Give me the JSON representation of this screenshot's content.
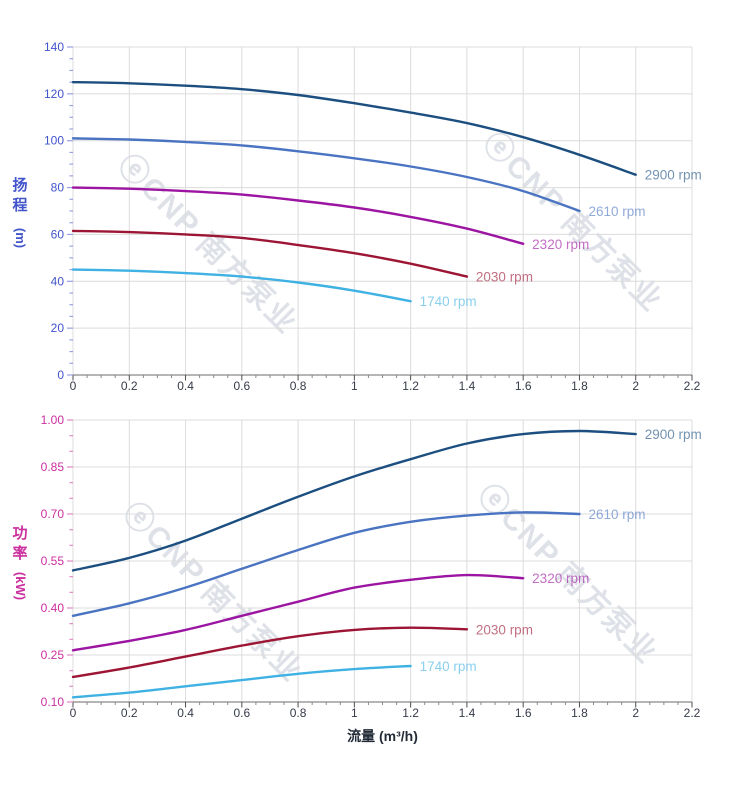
{
  "watermark": {
    "text": "ⓔCNP 南方泵业",
    "color": "#8d97ad"
  },
  "axis_titles": {
    "head_char_0": "扬",
    "head_char_1": "程",
    "head_unit": "(m)",
    "power_char_0": "功",
    "power_char_1": "率",
    "power_unit": "(kW)",
    "x_title": "流量 (m³/h)"
  },
  "chart_data": [
    {
      "type": "line",
      "title": "",
      "xlabel": "",
      "ylabel": "扬程 (m)",
      "legend_position": "end-of-line",
      "grid": true,
      "grid_color": "#dcdcdc",
      "axis_color": "#4254cc",
      "tick_color": "#97a0e0",
      "x_text_color": "#353b48",
      "xlim": [
        0,
        2.2
      ],
      "ylim": [
        0,
        140
      ],
      "x_major": [
        0,
        0.2,
        0.4,
        0.6,
        0.8,
        1,
        1.2,
        1.4,
        1.6,
        1.8,
        2,
        2.2
      ],
      "x_labels": [
        "0",
        "0.2",
        "0.4",
        "0.6",
        "0.8",
        "1",
        "1.2",
        "1.4",
        "1.6",
        "1.8",
        "2",
        "2.2"
      ],
      "x_minor_step": 0.05,
      "y_major": [
        0,
        20,
        40,
        60,
        80,
        100,
        120,
        140
      ],
      "y_labels": [
        "0",
        "20",
        "40",
        "60",
        "80",
        "100",
        "120",
        "140"
      ],
      "y_minor_step": 5,
      "series": [
        {
          "name": "2900 rpm",
          "color": "#1c4f80",
          "points": [
            [
              0,
              125
            ],
            [
              0.2,
              124.5
            ],
            [
              0.4,
              123.5
            ],
            [
              0.6,
              122
            ],
            [
              0.8,
              119.5
            ],
            [
              1,
              116
            ],
            [
              1.2,
              112
            ],
            [
              1.4,
              107.5
            ],
            [
              1.6,
              101.5
            ],
            [
              1.8,
              94
            ],
            [
              2,
              85.5
            ]
          ]
        },
        {
          "name": "2610 rpm",
          "color": "#4a74c2",
          "points": [
            [
              0,
              101
            ],
            [
              0.2,
              100.5
            ],
            [
              0.4,
              99.5
            ],
            [
              0.6,
              98
            ],
            [
              0.8,
              95.5
            ],
            [
              1,
              92.5
            ],
            [
              1.2,
              89
            ],
            [
              1.4,
              84.5
            ],
            [
              1.6,
              78.5
            ],
            [
              1.8,
              70
            ]
          ]
        },
        {
          "name": "2320 rpm",
          "color": "#9c14a2",
          "points": [
            [
              0,
              80
            ],
            [
              0.2,
              79.5
            ],
            [
              0.4,
              78.5
            ],
            [
              0.6,
              77
            ],
            [
              0.8,
              74.5
            ],
            [
              1,
              71.5
            ],
            [
              1.2,
              67.5
            ],
            [
              1.4,
              62.5
            ],
            [
              1.6,
              56
            ]
          ]
        },
        {
          "name": "2030 rpm",
          "color": "#9d1534",
          "points": [
            [
              0,
              61.5
            ],
            [
              0.2,
              61
            ],
            [
              0.4,
              60
            ],
            [
              0.6,
              58.5
            ],
            [
              0.8,
              55.5
            ],
            [
              1,
              52
            ],
            [
              1.2,
              47.5
            ],
            [
              1.4,
              42
            ]
          ]
        },
        {
          "name": "1740 rpm",
          "color": "#3fb1e3",
          "points": [
            [
              0,
              45
            ],
            [
              0.2,
              44.5
            ],
            [
              0.4,
              43.5
            ],
            [
              0.6,
              42
            ],
            [
              0.8,
              39.5
            ],
            [
              1,
              36
            ],
            [
              1.2,
              31.5
            ]
          ]
        }
      ]
    },
    {
      "type": "line",
      "title": "",
      "xlabel": "流量 (m³/h)",
      "ylabel": "功率 (kW)",
      "legend_position": "end-of-line",
      "grid": true,
      "grid_color": "#dcdcdc",
      "axis_color": "#cb2f9e",
      "tick_color": "#e389c8",
      "x_text_color": "#353b48",
      "xlim": [
        0,
        2.2
      ],
      "ylim": [
        0.1,
        1.0
      ],
      "x_major": [
        0,
        0.2,
        0.4,
        0.6,
        0.8,
        1,
        1.2,
        1.4,
        1.6,
        1.8,
        2,
        2.2
      ],
      "x_labels": [
        "0",
        "0.2",
        "0.4",
        "0.6",
        "0.8",
        "1",
        "1.2",
        "1.4",
        "1.6",
        "1.8",
        "2",
        "2.2"
      ],
      "x_minor_step": 0.05,
      "y_major": [
        0.1,
        0.25,
        0.4,
        0.55,
        0.7,
        0.85,
        1.0
      ],
      "y_labels": [
        "0.10",
        "0.25",
        "0.40",
        "0.55",
        "0.70",
        "0.85",
        "1.00"
      ],
      "y_minor_step": 0.05,
      "series": [
        {
          "name": "2900 rpm",
          "color": "#1c4f80",
          "points": [
            [
              0,
              0.52
            ],
            [
              0.2,
              0.56
            ],
            [
              0.4,
              0.615
            ],
            [
              0.6,
              0.685
            ],
            [
              0.8,
              0.755
            ],
            [
              1,
              0.82
            ],
            [
              1.2,
              0.875
            ],
            [
              1.4,
              0.925
            ],
            [
              1.6,
              0.955
            ],
            [
              1.8,
              0.965
            ],
            [
              2,
              0.955
            ]
          ]
        },
        {
          "name": "2610 rpm",
          "color": "#4a74c2",
          "points": [
            [
              0,
              0.375
            ],
            [
              0.2,
              0.415
            ],
            [
              0.4,
              0.465
            ],
            [
              0.6,
              0.525
            ],
            [
              0.8,
              0.585
            ],
            [
              1,
              0.64
            ],
            [
              1.2,
              0.675
            ],
            [
              1.4,
              0.695
            ],
            [
              1.6,
              0.705
            ],
            [
              1.8,
              0.7
            ]
          ]
        },
        {
          "name": "2320 rpm",
          "color": "#9c14a2",
          "points": [
            [
              0,
              0.265
            ],
            [
              0.2,
              0.295
            ],
            [
              0.4,
              0.33
            ],
            [
              0.6,
              0.375
            ],
            [
              0.8,
              0.42
            ],
            [
              1,
              0.465
            ],
            [
              1.2,
              0.49
            ],
            [
              1.4,
              0.505
            ],
            [
              1.6,
              0.495
            ]
          ]
        },
        {
          "name": "2030 rpm",
          "color": "#9d1534",
          "points": [
            [
              0,
              0.18
            ],
            [
              0.2,
              0.21
            ],
            [
              0.4,
              0.245
            ],
            [
              0.6,
              0.28
            ],
            [
              0.8,
              0.31
            ],
            [
              1,
              0.33
            ],
            [
              1.2,
              0.337
            ],
            [
              1.4,
              0.332
            ]
          ]
        },
        {
          "name": "1740 rpm",
          "color": "#3fb1e3",
          "points": [
            [
              0,
              0.115
            ],
            [
              0.2,
              0.13
            ],
            [
              0.4,
              0.15
            ],
            [
              0.6,
              0.17
            ],
            [
              0.8,
              0.19
            ],
            [
              1,
              0.205
            ],
            [
              1.2,
              0.215
            ]
          ]
        }
      ]
    }
  ]
}
